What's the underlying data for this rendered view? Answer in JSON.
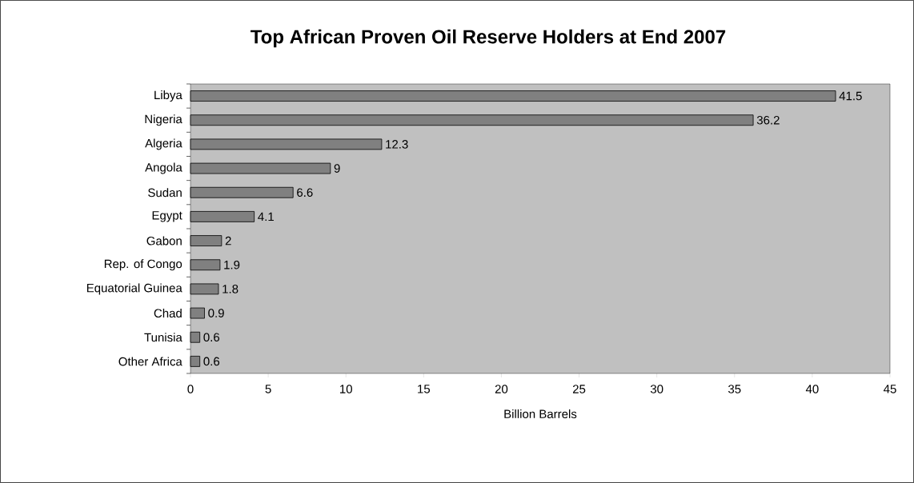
{
  "chart_data": {
    "type": "bar",
    "orientation": "horizontal",
    "title": "Top African Proven Oil Reserve Holders at End 2007",
    "xlabel": "Billion Barrels",
    "categories": [
      "Libya",
      "Nigeria",
      "Algeria",
      "Angola",
      "Sudan",
      "Egypt",
      "Gabon",
      "Rep. of Congo",
      "Equatorial Guinea",
      "Chad",
      "Tunisia",
      "Other Africa"
    ],
    "values": [
      41.5,
      36.2,
      12.3,
      9,
      6.6,
      4.1,
      2,
      1.9,
      1.8,
      0.9,
      0.6,
      0.6
    ],
    "color": "#808080",
    "xlim": [
      0,
      45
    ],
    "xticks": [
      0,
      5,
      10,
      15,
      20,
      25,
      30,
      35,
      40,
      45
    ],
    "data_labels": true
  }
}
